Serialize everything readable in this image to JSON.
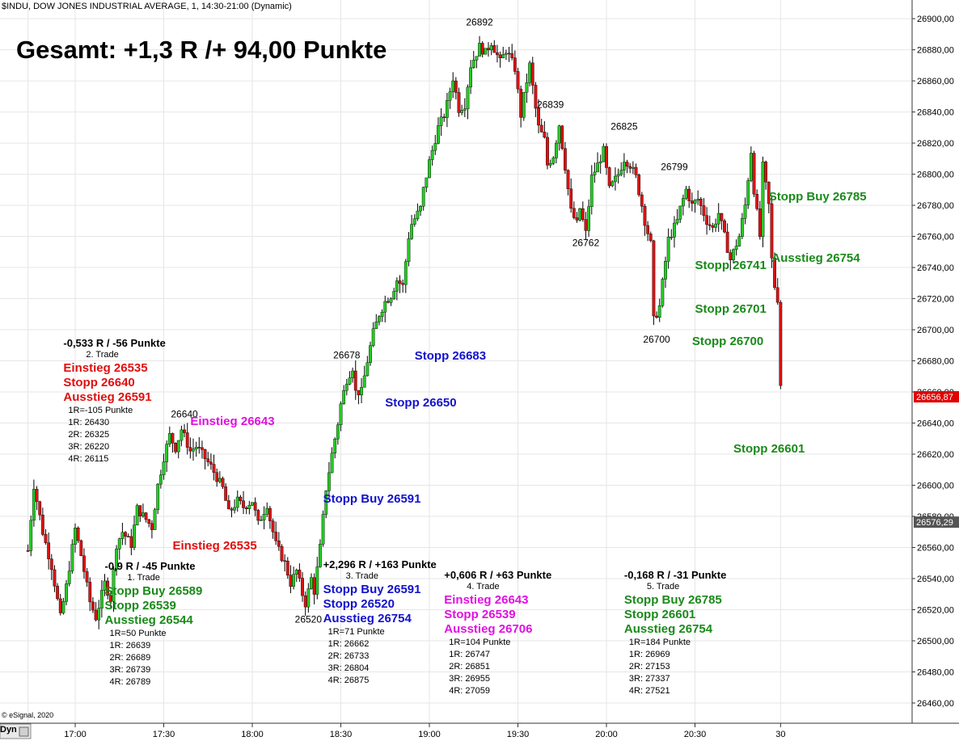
{
  "header": "$INDU, DOW JONES INDUSTRIAL AVERAGE, 1, 14:30-21:00 (Dynamic)",
  "headline": "Gesamt: +1,3 R /+ 94,00 Punkte",
  "footer": {
    "copyright": "© eSignal, 2020",
    "mode": "Dyn"
  },
  "colors": {
    "up": "#22cc22",
    "down": "#dd1111",
    "green": "#1a8a1a",
    "blue": "#1212cc",
    "red": "#e01010",
    "magenta": "#e010e0",
    "price_tag": "#e00000",
    "ref_tag": "#555555"
  },
  "chart_data": {
    "type": "candlestick",
    "title": "",
    "ylim": [
      26447,
      26912
    ],
    "y_ticks": [
      {
        "value": 26460,
        "label": "26460,00"
      },
      {
        "value": 26480,
        "label": "26480,00"
      },
      {
        "value": 26500,
        "label": "26500,00"
      },
      {
        "value": 26520,
        "label": "26520,00"
      },
      {
        "value": 26540,
        "label": "26540,00"
      },
      {
        "value": 26560,
        "label": "26560,00"
      },
      {
        "value": 26580,
        "label": "26580,00"
      },
      {
        "value": 26600,
        "label": "26600,00"
      },
      {
        "value": 26620,
        "label": "26620,00"
      },
      {
        "value": 26640,
        "label": "26640,00"
      },
      {
        "value": 26660,
        "label": "26660,00"
      },
      {
        "value": 26680,
        "label": "26680,00"
      },
      {
        "value": 26700,
        "label": "26700,00"
      },
      {
        "value": 26720,
        "label": "26720,00"
      },
      {
        "value": 26740,
        "label": "26740,00"
      },
      {
        "value": 26760,
        "label": "26760,00"
      },
      {
        "value": 26780,
        "label": "26780,00"
      },
      {
        "value": 26800,
        "label": "26800,00"
      },
      {
        "value": 26820,
        "label": "26820,00"
      },
      {
        "value": 26840,
        "label": "26840,00"
      },
      {
        "value": 26860,
        "label": "26860,00"
      },
      {
        "value": 26880,
        "label": "26880,00"
      },
      {
        "value": 26900,
        "label": "26900,00"
      }
    ],
    "x_ticks": [
      {
        "value": "16:44",
        "label": ""
      },
      {
        "value": "17:00",
        "label": "17:00"
      },
      {
        "value": "17:30",
        "label": "17:30"
      },
      {
        "value": "18:00",
        "label": "18:00"
      },
      {
        "value": "18:30",
        "label": "18:30"
      },
      {
        "value": "19:00",
        "label": "19:00"
      },
      {
        "value": "19:30",
        "label": "19:30"
      },
      {
        "value": "20:00",
        "label": "20:00"
      },
      {
        "value": "20:30",
        "label": "20:30"
      },
      {
        "value": "20:59",
        "label": "30"
      }
    ],
    "price_tags": [
      {
        "value": 26656.87,
        "label": "26656,87",
        "kind": "last"
      },
      {
        "value": 26576.29,
        "label": "26576,29",
        "kind": "ref"
      }
    ],
    "path": [
      [
        "16:44",
        26558
      ],
      [
        "16:46",
        26600
      ],
      [
        "16:49",
        26570
      ],
      [
        "16:52",
        26548
      ],
      [
        "16:55",
        26515
      ],
      [
        "16:57",
        26535
      ],
      [
        "17:00",
        26572
      ],
      [
        "17:02",
        26555
      ],
      [
        "17:05",
        26525
      ],
      [
        "17:07",
        26515
      ],
      [
        "17:10",
        26537
      ],
      [
        "17:12",
        26527
      ],
      [
        "17:14",
        26562
      ],
      [
        "17:16",
        26570
      ],
      [
        "17:19",
        26562
      ],
      [
        "17:21",
        26585
      ],
      [
        "17:24",
        26578
      ],
      [
        "17:26",
        26573
      ],
      [
        "17:28",
        26600
      ],
      [
        "17:30",
        26618
      ],
      [
        "17:32",
        26632
      ],
      [
        "17:34",
        26624
      ],
      [
        "17:36",
        26636
      ],
      [
        "17:39",
        26622
      ],
      [
        "17:41",
        26625
      ],
      [
        "17:43",
        26620
      ],
      [
        "17:46",
        26612
      ],
      [
        "17:48",
        26605
      ],
      [
        "17:50",
        26598
      ],
      [
        "17:52",
        26582
      ],
      [
        "17:55",
        26590
      ],
      [
        "17:57",
        26586
      ],
      [
        "18:00",
        26590
      ],
      [
        "18:02",
        26575
      ],
      [
        "18:05",
        26588
      ],
      [
        "18:06",
        26578
      ],
      [
        "18:08",
        26562
      ],
      [
        "18:11",
        26550
      ],
      [
        "18:13",
        26537
      ],
      [
        "18:15",
        26545
      ],
      [
        "18:17",
        26530
      ],
      [
        "18:18",
        26524
      ],
      [
        "18:20",
        26540
      ],
      [
        "18:21",
        26532
      ],
      [
        "18:23",
        26560
      ],
      [
        "18:25",
        26598
      ],
      [
        "18:27",
        26620
      ],
      [
        "18:29",
        26640
      ],
      [
        "18:30",
        26652
      ],
      [
        "18:32",
        26668
      ],
      [
        "18:34",
        26676
      ],
      [
        "18:35",
        26660
      ],
      [
        "18:37",
        26660
      ],
      [
        "18:39",
        26680
      ],
      [
        "18:41",
        26698
      ],
      [
        "18:43",
        26710
      ],
      [
        "18:45",
        26718
      ],
      [
        "18:47",
        26722
      ],
      [
        "18:49",
        26732
      ],
      [
        "18:51",
        26728
      ],
      [
        "18:53",
        26760
      ],
      [
        "18:54",
        26768
      ],
      [
        "18:57",
        26778
      ],
      [
        "18:58",
        26790
      ],
      [
        "19:00",
        26808
      ],
      [
        "19:03",
        26830
      ],
      [
        "19:05",
        26838
      ],
      [
        "19:06",
        26845
      ],
      [
        "19:08",
        26862
      ],
      [
        "19:10",
        26842
      ],
      [
        "19:12",
        26845
      ],
      [
        "19:14",
        26870
      ],
      [
        "19:17",
        26882
      ],
      [
        "19:19",
        26878
      ],
      [
        "19:21",
        26885
      ],
      [
        "19:24",
        26872
      ],
      [
        "19:26",
        26880
      ],
      [
        "19:29",
        26868
      ],
      [
        "19:31",
        26838
      ],
      [
        "19:32",
        26850
      ],
      [
        "19:34",
        26870
      ],
      [
        "19:36",
        26842
      ],
      [
        "19:37",
        26830
      ],
      [
        "19:39",
        26822
      ],
      [
        "19:40",
        26806
      ],
      [
        "19:42",
        26812
      ],
      [
        "19:44",
        26832
      ],
      [
        "19:46",
        26805
      ],
      [
        "19:48",
        26776
      ],
      [
        "19:50",
        26768
      ],
      [
        "19:51",
        26778
      ],
      [
        "19:53",
        26762
      ],
      [
        "19:55",
        26798
      ],
      [
        "19:57",
        26806
      ],
      [
        "19:59",
        26815
      ],
      [
        "20:01",
        26790
      ],
      [
        "20:04",
        26800
      ],
      [
        "20:06",
        26810
      ],
      [
        "20:08",
        26806
      ],
      [
        "20:10",
        26798
      ],
      [
        "20:12",
        26780
      ],
      [
        "20:13",
        26770
      ],
      [
        "20:15",
        26755
      ],
      [
        "20:16",
        26706
      ],
      [
        "20:18",
        26715
      ],
      [
        "20:19",
        26730
      ],
      [
        "20:21",
        26758
      ],
      [
        "20:24",
        26770
      ],
      [
        "20:25",
        26778
      ],
      [
        "20:27",
        26790
      ],
      [
        "20:29",
        26780
      ],
      [
        "20:31",
        26784
      ],
      [
        "20:34",
        26770
      ],
      [
        "20:36",
        26765
      ],
      [
        "20:38",
        26775
      ],
      [
        "20:40",
        26760
      ],
      [
        "20:42",
        26745
      ],
      [
        "20:45",
        26760
      ],
      [
        "20:47",
        26780
      ],
      [
        "20:49",
        26815
      ],
      [
        "20:50",
        26790
      ],
      [
        "20:52",
        26760
      ],
      [
        "20:53",
        26805
      ],
      [
        "20:55",
        26780
      ],
      [
        "20:56",
        26745
      ],
      [
        "20:57",
        26728
      ],
      [
        "20:58",
        26720
      ],
      [
        "20:59",
        26665
      ]
    ],
    "swing_labels": [
      {
        "text": "26892",
        "time": "19:17",
        "value": 26892,
        "position": "above"
      },
      {
        "text": "26839",
        "time": "19:41",
        "value": 26839,
        "position": "above"
      },
      {
        "text": "26825",
        "time": "20:06",
        "value": 26825,
        "position": "above"
      },
      {
        "text": "26799",
        "time": "20:23",
        "value": 26799,
        "position": "above"
      },
      {
        "text": "26678",
        "time": "18:32",
        "value": 26678,
        "position": "above"
      },
      {
        "text": "26640",
        "time": "17:37",
        "value": 26640,
        "position": "above"
      },
      {
        "text": "26762",
        "time": "19:53",
        "value": 26762,
        "position": "below"
      },
      {
        "text": "26700",
        "time": "20:17",
        "value": 26700,
        "position": "below"
      },
      {
        "text": "26520",
        "time": "18:19",
        "value": 26520,
        "position": "below"
      }
    ]
  },
  "annotations": [
    {
      "text": "Einstieg 26643",
      "color": "magenta",
      "time": "17:39",
      "value": 26641
    },
    {
      "text": "Stopp 26683",
      "color": "blue",
      "time": "18:55",
      "value": 26683
    },
    {
      "text": "Stopp 26650",
      "color": "blue",
      "time": "18:45",
      "value": 26653
    },
    {
      "text": "Stopp Buy 26591",
      "color": "blue",
      "time": "18:24",
      "value": 26591
    },
    {
      "text": "Einstieg 26535",
      "color": "red",
      "time": "17:33",
      "value": 26561
    },
    {
      "text": "Stopp Buy 26785",
      "color": "green",
      "time": "20:55",
      "value": 26785
    },
    {
      "text": "Ausstieg 26754",
      "color": "green",
      "time": "20:56",
      "value": 26746
    },
    {
      "text": "Stopp 26741",
      "color": "green",
      "time": "20:30",
      "value": 26741
    },
    {
      "text": "Stopp 26701",
      "color": "green",
      "time": "20:30",
      "value": 26713
    },
    {
      "text": "Stopp 26700",
      "color": "green",
      "time": "20:29",
      "value": 26692
    },
    {
      "text": "Stopp 26601",
      "color": "green",
      "time": "20:43",
      "value": 26623
    }
  ],
  "trades": [
    {
      "id": "t1",
      "time": "17:10",
      "value": 26548,
      "result": "-0,9 R / -45 Punkte",
      "title": "1. Trade",
      "lines": [
        {
          "text": "Stopp Buy 26589",
          "color": "green"
        },
        {
          "text": "Stopp 26539",
          "color": "green"
        },
        {
          "text": "Ausstieg 26544",
          "color": "green"
        }
      ],
      "risk": "1R=50 Punkte",
      "targets": [
        "1R: 26639",
        "2R: 26689",
        "3R: 26739",
        "4R: 26789"
      ]
    },
    {
      "id": "t2",
      "time": "16:56",
      "value": 26691,
      "result": "-0,533 R / -56 Punkte",
      "title": "2. Trade",
      "lines": [
        {
          "text": "Einstieg 26535",
          "color": "red"
        },
        {
          "text": "Stopp 26640",
          "color": "red"
        },
        {
          "text": "Ausstieg 26591",
          "color": "red"
        }
      ],
      "risk": "1R=-105 Punkte",
      "targets": [
        "1R: 26430",
        "2R: 26325",
        "3R: 26220",
        "4R: 26115"
      ]
    },
    {
      "id": "t3",
      "time": "18:24",
      "value": 26549,
      "result": "+2,296 R / +163 Punkte",
      "title": "3. Trade",
      "lines": [
        {
          "text": "Stopp Buy 26591",
          "color": "blue"
        },
        {
          "text": "Stopp 26520",
          "color": "blue"
        },
        {
          "text": "Ausstieg 26754",
          "color": "blue"
        }
      ],
      "risk": "1R=71 Punkte",
      "targets": [
        "1R: 26662",
        "2R: 26733",
        "3R: 26804",
        "4R: 26875"
      ]
    },
    {
      "id": "t4",
      "time": "19:05",
      "value": 26542,
      "result": "+0,606 R / +63 Punkte",
      "title": "4. Trade",
      "lines": [
        {
          "text": "Einstieg 26643",
          "color": "magenta"
        },
        {
          "text": "Stopp 26539",
          "color": "magenta"
        },
        {
          "text": "Ausstieg 26706",
          "color": "magenta"
        }
      ],
      "risk": "1R=104 Punkte",
      "targets": [
        "1R: 26747",
        "2R: 26851",
        "3R: 26955",
        "4R: 27059"
      ]
    },
    {
      "id": "t5",
      "time": "20:06",
      "value": 26542,
      "result": "-0,168 R / -31 Punkte",
      "title": "5. Trade",
      "lines": [
        {
          "text": "Stopp Buy 26785",
          "color": "green"
        },
        {
          "text": "Stopp 26601",
          "color": "green"
        },
        {
          "text": "Ausstieg 26754",
          "color": "green"
        }
      ],
      "risk": "1R=184 Punkte",
      "targets": [
        "1R: 26969",
        "2R: 27153",
        "3R: 27337",
        "4R: 27521"
      ]
    }
  ]
}
